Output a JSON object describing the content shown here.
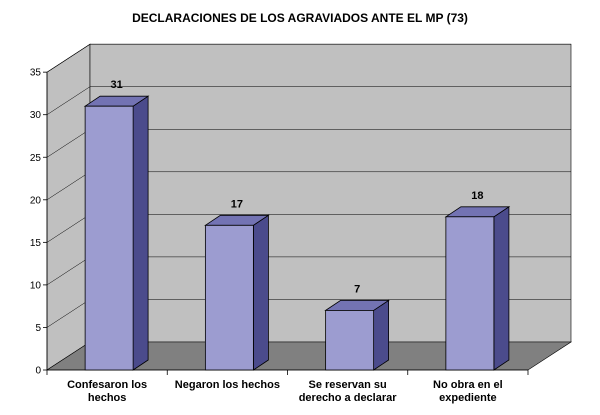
{
  "chart_data": {
    "type": "bar",
    "title": "DECLARACIONES DE LOS AGRAVIADOS ANTE EL MP (73)",
    "categories": [
      [
        "Confesaron los",
        "hechos"
      ],
      [
        "Negaron los hechos"
      ],
      [
        "Se reservan su",
        "derecho a declarar"
      ],
      [
        "No obra en el",
        "expediente"
      ]
    ],
    "values": [
      31,
      17,
      7,
      18
    ],
    "ylim": [
      0,
      35
    ],
    "yticks": [
      0,
      5,
      10,
      15,
      20,
      25,
      30,
      35
    ],
    "grid": true,
    "legend": "none",
    "colors": {
      "bar_front": "#9c9cd0",
      "bar_side": "#4b4b8c",
      "bar_top": "#7373b3",
      "bar_stroke": "#000000",
      "back_wall": "#c0c0c0",
      "side_wall": "#c0c0c0",
      "floor": "#808080",
      "grid": "#000000"
    }
  }
}
